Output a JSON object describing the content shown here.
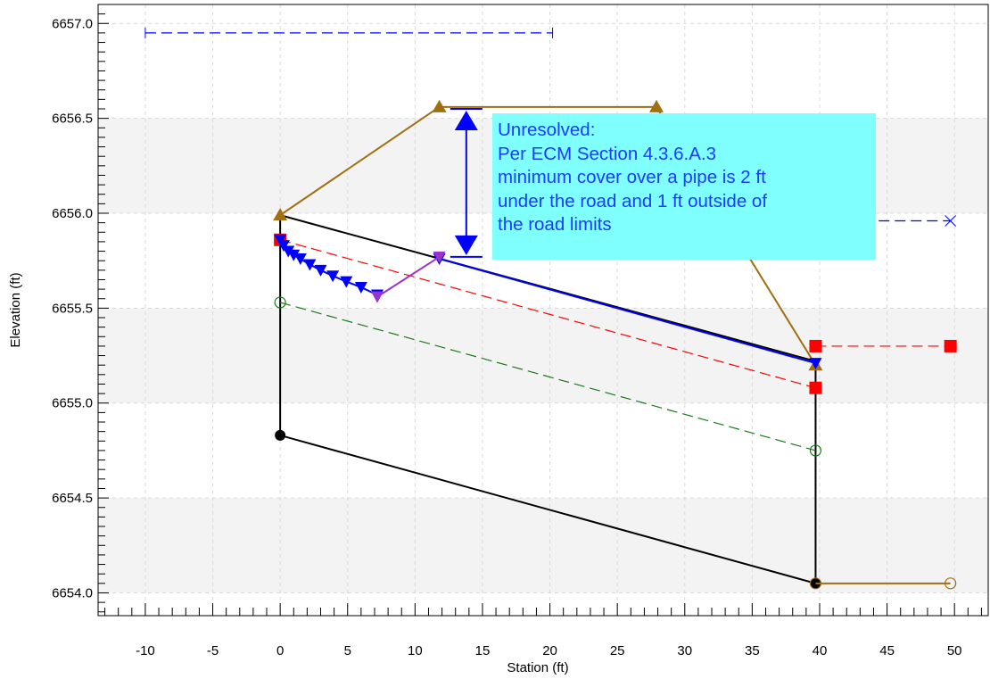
{
  "chart_data": {
    "type": "line",
    "xlabel": "Station (ft)",
    "ylabel": "Elevation (ft)",
    "xlim": [
      -13.5,
      52.5
    ],
    "ylim": [
      6653.88,
      6657.1
    ],
    "x_ticks": [
      -10,
      -5,
      0,
      5,
      10,
      15,
      20,
      25,
      30,
      35,
      40,
      45,
      50
    ],
    "y_ticks": [
      6654.0,
      6654.5,
      6655.0,
      6655.5,
      6656.0,
      6656.5,
      6657.0
    ],
    "grid": true,
    "legend": "none",
    "series": [
      {
        "color": "#000000",
        "style": "solid",
        "marker": "none",
        "points": [
          [
            0,
            6655.99
          ],
          [
            39.7,
            6655.22
          ],
          [
            39.7,
            6654.05
          ],
          [
            0,
            6654.83
          ],
          [
            0,
            6655.99
          ]
        ]
      },
      {
        "color": "#000000",
        "style": "none",
        "marker": "circle-filled",
        "points": [
          [
            0,
            6654.83
          ],
          [
            39.7,
            6654.05
          ]
        ]
      },
      {
        "color": "#a07010",
        "style": "solid",
        "marker": "triangle-filled",
        "points": [
          [
            0,
            6655.99
          ],
          [
            11.8,
            6656.56
          ],
          [
            27.9,
            6656.56
          ],
          [
            39.7,
            6655.2
          ]
        ]
      },
      {
        "color": "#a07010",
        "style": "solid",
        "marker": "circle-open",
        "points": [
          [
            39.7,
            6654.05
          ],
          [
            49.7,
            6654.05
          ]
        ]
      },
      {
        "color": "#ff0000",
        "style": "dashed",
        "marker": "square-filled",
        "points": [
          [
            0,
            6655.86
          ],
          [
            39.7,
            6655.08
          ]
        ]
      },
      {
        "color": "#ff0000",
        "style": "dashed",
        "marker": "square-filled",
        "points": [
          [
            39.7,
            6655.3
          ],
          [
            49.7,
            6655.3
          ]
        ]
      },
      {
        "color": "#1a7a1a",
        "style": "dashed",
        "marker": "circle-open",
        "points": [
          [
            0,
            6655.53
          ],
          [
            39.7,
            6654.75
          ]
        ]
      },
      {
        "color": "#0000ff",
        "style": "solid",
        "marker": "triangle-down-filled",
        "points": [
          [
            0,
            6655.86
          ],
          [
            0.25,
            6655.83
          ],
          [
            0.6,
            6655.8
          ],
          [
            1.0,
            6655.78
          ],
          [
            1.5,
            6655.76
          ],
          [
            2.2,
            6655.73
          ],
          [
            3.0,
            6655.7
          ],
          [
            3.9,
            6655.67
          ],
          [
            4.9,
            6655.64
          ],
          [
            6.0,
            6655.61
          ],
          [
            7.2,
            6655.57
          ]
        ]
      },
      {
        "color": "#0000ff",
        "style": "solid",
        "marker": "triangle-down-filled",
        "points": [
          [
            11.8,
            6655.76
          ],
          [
            39.7,
            6655.21
          ]
        ]
      },
      {
        "color": "#9933cc",
        "style": "solid",
        "marker": "triangle-down-filled",
        "points": [
          [
            7.2,
            6655.56
          ],
          [
            11.8,
            6655.77
          ]
        ]
      },
      {
        "color": "#0000ff",
        "style": "dashed",
        "marker": "plus",
        "points": [
          [
            -10,
            6656.95
          ],
          [
            20.2,
            6656.95
          ]
        ]
      },
      {
        "color": "#0000ff",
        "style": "dashed",
        "marker": "x",
        "points": [
          [
            42,
            6655.96
          ],
          [
            49.7,
            6655.96
          ]
        ]
      }
    ],
    "annotations": [
      {
        "type": "dimension-arrow",
        "color": "#0000ff",
        "x": 13.8,
        "y1": 6656.55,
        "y2": 6655.77
      },
      {
        "type": "callout",
        "lines": [
          "Unresolved:",
          "Per ECM Section 4.3.6.A.3",
          "minimum cover over a pipe is 2 ft",
          "under the road and 1 ft outside of",
          "the road limits"
        ]
      }
    ]
  }
}
